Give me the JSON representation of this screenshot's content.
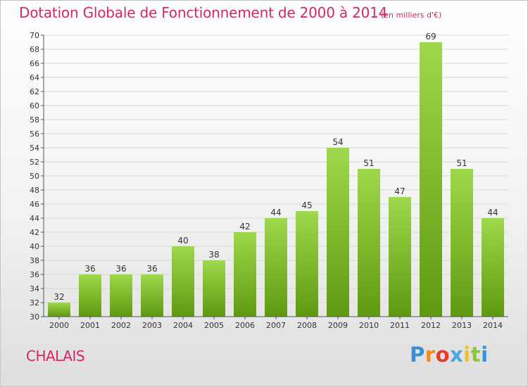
{
  "title": "Dotation Globale de Fonctionnement de 2000 à 2014",
  "subtitle": "(en milliers d'€)",
  "commune": "CHALAIS",
  "logo": {
    "text": "Proxiti",
    "letter_colors": [
      "#3a8fd6",
      "#f08c1e",
      "#e53c2e",
      "#4aa8e0",
      "#f6c018",
      "#8cc63f",
      "#3a8fd6"
    ]
  },
  "colors": {
    "title": "#d2295c",
    "bar_light": "#9ed84c",
    "bar_dark": "#5e9a10",
    "axis": "#555555",
    "grid": "#d8d8d8"
  },
  "chart_data": {
    "type": "bar",
    "categories": [
      "2000",
      "2001",
      "2002",
      "2003",
      "2004",
      "2005",
      "2006",
      "2007",
      "2008",
      "2009",
      "2010",
      "2011",
      "2012",
      "2013",
      "2014"
    ],
    "values": [
      32,
      36,
      36,
      36,
      40,
      38,
      42,
      44,
      45,
      54,
      51,
      47,
      69,
      51,
      44
    ],
    "ylim": [
      30,
      70
    ],
    "ytick_step": 2,
    "grid": true,
    "data_labels": true
  }
}
